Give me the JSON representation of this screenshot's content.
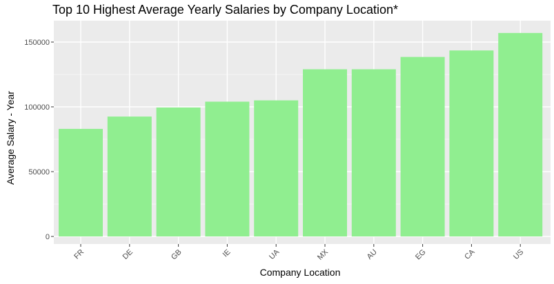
{
  "chart_data": {
    "type": "bar",
    "title": "Top 10 Highest Average Yearly Salaries by Company Location*",
    "xlabel": "Company Location",
    "ylabel": "Average Salary - Year",
    "categories": [
      "FR",
      "DE",
      "GB",
      "IE",
      "UA",
      "MX",
      "AU",
      "EG",
      "CA",
      "US"
    ],
    "values": [
      83000,
      92500,
      99500,
      104000,
      105000,
      129000,
      129000,
      138500,
      143500,
      157000
    ],
    "ylim": [
      0,
      160000
    ],
    "yticks": [
      0,
      50000,
      100000,
      150000
    ],
    "ytick_labels": [
      "0",
      "50000",
      "100000",
      "150000"
    ],
    "grid": true,
    "bar_color": "#90EE90",
    "panel_background": "#EBEBEB",
    "grid_color": "#FFFFFF"
  }
}
